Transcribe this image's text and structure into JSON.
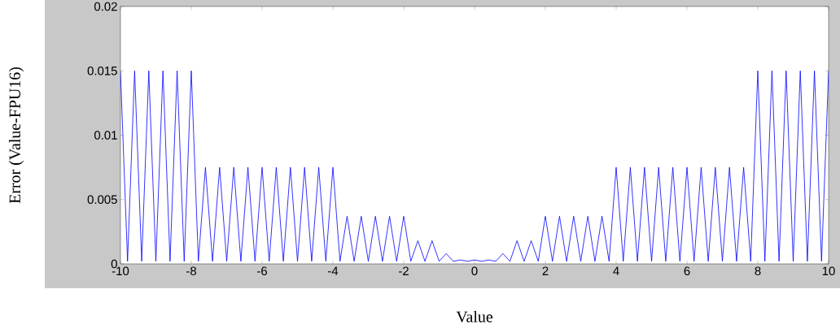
{
  "chart_data": {
    "type": "line",
    "xlabel": "Value",
    "ylabel": "Error (Value-FPU16)",
    "x": [
      -10,
      -9.8,
      -9.6,
      -9.4,
      -9.2,
      -9,
      -8.8,
      -8.6,
      -8.4,
      -8.2,
      -8,
      -7.8,
      -7.6,
      -7.4,
      -7.2,
      -7,
      -6.8,
      -6.6,
      -6.4,
      -6.2,
      -6,
      -5.8,
      -5.6,
      -5.4,
      -5.2,
      -5,
      -4.8,
      -4.6,
      -4.4,
      -4.2,
      -4,
      -3.8,
      -3.6,
      -3.4,
      -3.2,
      -3,
      -2.8,
      -2.6,
      -2.4,
      -2.2,
      -2,
      -1.8,
      -1.6,
      -1.4,
      -1.2,
      -1,
      -0.8,
      -0.6,
      -0.4,
      -0.2,
      0,
      0.2,
      0.4,
      0.6,
      0.8,
      1,
      1.2,
      1.4,
      1.6,
      1.8,
      2,
      2.2,
      2.4,
      2.6,
      2.8,
      3,
      3.2,
      3.4,
      3.6,
      3.8,
      4,
      4.2,
      4.4,
      4.6,
      4.8,
      5,
      5.2,
      5.4,
      5.6,
      5.8,
      6,
      6.2,
      6.4,
      6.6,
      6.8,
      7,
      7.2,
      7.4,
      7.6,
      7.8,
      8,
      8.2,
      8.4,
      8.6,
      8.8,
      9,
      9.2,
      9.4,
      9.6,
      9.8,
      10
    ],
    "values": [
      0.015,
      0.0002,
      0.015,
      0.0002,
      0.015,
      0.0002,
      0.015,
      0.0002,
      0.015,
      0.0002,
      0.015,
      0.0002,
      0.0075,
      0.0002,
      0.0075,
      0.0002,
      0.0075,
      0.0002,
      0.0075,
      0.0002,
      0.0075,
      0.0002,
      0.0075,
      0.0002,
      0.0075,
      0.0002,
      0.0075,
      0.0002,
      0.0075,
      0.0002,
      0.0075,
      0.0002,
      0.0037,
      0.0002,
      0.0037,
      0.0002,
      0.0037,
      0.0002,
      0.0037,
      0.0002,
      0.0037,
      0.0002,
      0.0018,
      0.0002,
      0.0018,
      0.0002,
      0.0008,
      0.0002,
      0.0003,
      0.0002,
      0.0003,
      0.0002,
      0.0003,
      0.0002,
      0.0008,
      0.0002,
      0.0018,
      0.0002,
      0.0018,
      0.0002,
      0.0037,
      0.0002,
      0.0037,
      0.0002,
      0.0037,
      0.0002,
      0.0037,
      0.0002,
      0.0037,
      0.0002,
      0.0075,
      0.0002,
      0.0075,
      0.0002,
      0.0075,
      0.0002,
      0.0075,
      0.0002,
      0.0075,
      0.0002,
      0.0075,
      0.0002,
      0.0075,
      0.0002,
      0.0075,
      0.0002,
      0.0075,
      0.0002,
      0.0075,
      0.0002,
      0.015,
      0.0002,
      0.015,
      0.0002,
      0.015,
      0.0002,
      0.015,
      0.0002,
      0.015,
      0.0002,
      0.015
    ],
    "color": "#0000ff",
    "xlim": [
      -10,
      10
    ],
    "ylim": [
      0,
      0.02
    ],
    "xticks": [
      -10,
      -8,
      -6,
      -4,
      -2,
      0,
      2,
      4,
      6,
      8,
      10
    ],
    "yticks": [
      0,
      0.005,
      0.01,
      0.015,
      0.02
    ]
  }
}
